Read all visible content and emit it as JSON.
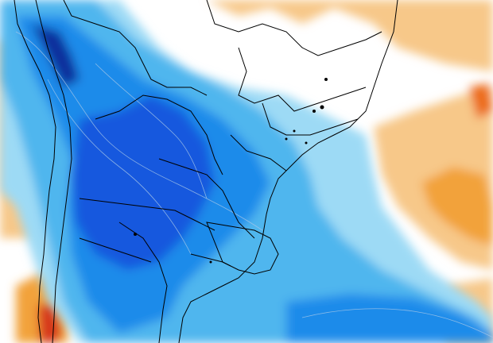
{
  "map": {
    "kind": "temperature-anomaly",
    "region": "South America",
    "colors": {
      "background": "#ffffff",
      "cold_light": "#d3f0fb",
      "cold_1": "#9ddaf5",
      "cold_2": "#4fb6ee",
      "cold_3": "#1f8bea",
      "cold_4": "#1259de",
      "cold_5": "#0a2f9c",
      "warm_1": "#fbe2c4",
      "warm_2": "#f7c889",
      "warm_3": "#f2a23b",
      "warm_4": "#ec6a18",
      "warm_5": "#d7381a",
      "border": "#000000",
      "contour": "#a7c7e7"
    }
  }
}
